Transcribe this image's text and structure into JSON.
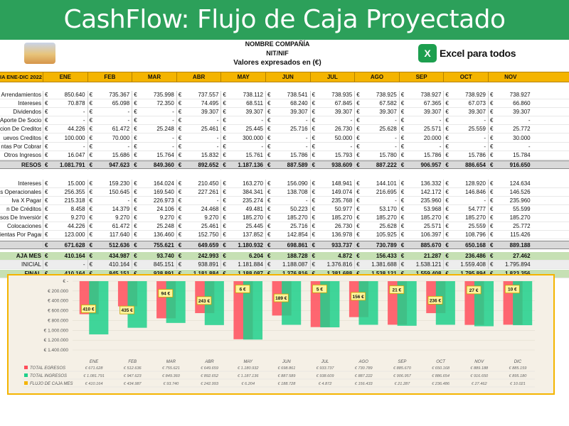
{
  "banner": {
    "title": "CashFlow: Flujo de Caja Proyectado"
  },
  "header": {
    "company": "NOMBRE COMPAÑÍA",
    "nit": "NIT/NIF",
    "values_note": "Valores expresados en (€)",
    "excel_brand": "Excel para todos",
    "excel_icon": "X"
  },
  "table": {
    "title": "IA ENE-DIC 2022",
    "months": [
      "ENE",
      "FEB",
      "MAR",
      "ABR",
      "MAY",
      "JUN",
      "JUL",
      "AGO",
      "SEP",
      "OCT",
      "NOV"
    ],
    "currency": "€",
    "income_rows": [
      {
        "label": "Arrendamientos",
        "values": [
          "850.640",
          "735.367",
          "735.998",
          "737.557",
          "738.112",
          "738.541",
          "738.935",
          "738.925",
          "738.927",
          "738.929",
          "738.927"
        ]
      },
      {
        "label": "Intereses",
        "values": [
          "70.878",
          "65.098",
          "72.350",
          "74.495",
          "68.511",
          "68.240",
          "67.845",
          "67.582",
          "67.365",
          "67.073",
          "66.860"
        ]
      },
      {
        "label": "Dividendos",
        "values": [
          "-",
          "-",
          "-",
          "39.307",
          "39.307",
          "39.307",
          "39.307",
          "39.307",
          "39.307",
          "39.307",
          "39.307"
        ]
      },
      {
        "label": "Aporte De Socios",
        "values": [
          "-",
          "-",
          "-",
          "-",
          "-",
          "-",
          "-",
          "-",
          "-",
          "-",
          "-"
        ]
      },
      {
        "label": "cion De Creditos",
        "values": [
          "44.226",
          "61.472",
          "25.248",
          "25.461",
          "25.445",
          "25.716",
          "26.730",
          "25.628",
          "25.571",
          "25.559",
          "25.772"
        ]
      },
      {
        "label": "uevos Creditos",
        "values": [
          "100.000",
          "70.000",
          "-",
          "-",
          "300.000",
          "-",
          "50.000",
          "-",
          "20.000",
          "-",
          "30.000"
        ]
      },
      {
        "label": "ntas Por Cobrar",
        "values": [
          "-",
          "-",
          "-",
          "-",
          "-",
          "-",
          "-",
          "-",
          "-",
          "-",
          "-"
        ]
      },
      {
        "label": "Otros Ingresos",
        "values": [
          "16.047",
          "15.686",
          "15.764",
          "15.832",
          "15.761",
          "15.786",
          "15.793",
          "15.780",
          "15.786",
          "15.786",
          "15.784"
        ]
      }
    ],
    "income_total": {
      "label": "RESOS",
      "values": [
        "1.081.791",
        "947.623",
        "849.360",
        "892.652",
        "1.187.136",
        "887.589",
        "938.609",
        "887.222",
        "906.957",
        "886.654",
        "916.650"
      ]
    },
    "expense_rows": [
      {
        "label": "Intereses",
        "values": [
          "15.000",
          "159.230",
          "164.024",
          "210.450",
          "163.270",
          "156.090",
          "148.941",
          "144.101",
          "136.332",
          "128.920",
          "124.634"
        ]
      },
      {
        "label": "s Operacionales",
        "values": [
          "256.355",
          "150.645",
          "169.540",
          "227.261",
          "384.341",
          "138.708",
          "149.074",
          "216.695",
          "142.172",
          "146.846",
          "146.526"
        ]
      },
      {
        "label": "Iva X Pagar",
        "values": [
          "215.318",
          "-",
          "226.973",
          "-",
          "235.274",
          "-",
          "235.768",
          "-",
          "235.960",
          "-",
          "235.960"
        ]
      },
      {
        "label": "n De Créditos",
        "values": [
          "8.458",
          "14.379",
          "24.106",
          "24.468",
          "49.481",
          "50.223",
          "50.977",
          "53.170",
          "53.968",
          "54.777",
          "55.599"
        ]
      },
      {
        "label": "sos De Inversión",
        "values": [
          "9.270",
          "9.270",
          "9.270",
          "9.270",
          "185.270",
          "185.270",
          "185.270",
          "185.270",
          "185.270",
          "185.270",
          "185.270"
        ]
      },
      {
        "label": "Colocaciones",
        "values": [
          "44.226",
          "61.472",
          "25.248",
          "25.461",
          "25.445",
          "25.716",
          "26.730",
          "25.628",
          "25.571",
          "25.559",
          "25.772"
        ]
      },
      {
        "label": "ientas Por Pagar",
        "values": [
          "123.000",
          "117.640",
          "136.460",
          "152.750",
          "137.852",
          "142.854",
          "136.978",
          "105.925",
          "106.397",
          "108.796",
          "115.426"
        ]
      }
    ],
    "expense_total": {
      "label": "",
      "values": [
        "671.628",
        "512.636",
        "755.621",
        "649.659",
        "1.180.932",
        "698.861",
        "933.737",
        "730.789",
        "885.670",
        "650.168",
        "889.188"
      ]
    },
    "summary_rows": [
      {
        "label": "AJA MES",
        "values": [
          "410.164",
          "434.987",
          "93.740",
          "242.993",
          "6.204",
          "188.728",
          "4.872",
          "156.433",
          "21.287",
          "236.486",
          "27.462"
        ],
        "style": "green"
      },
      {
        "label": "INICIAL",
        "values": [
          "-",
          "410.164",
          "845.151",
          "938.891",
          "1.181.884",
          "1.188.087",
          "1.376.816",
          "1.381.688",
          "1.538.121",
          "1.559.408",
          "1.795.894"
        ],
        "style": "gray"
      },
      {
        "label": "FINAL",
        "values": [
          "410.164",
          "845.151",
          "938.891",
          "1.181.884",
          "1.188.087",
          "1.376.816",
          "1.381.688",
          "1.538.121",
          "1.559.408",
          "1.795.894",
          "1.823.356"
        ],
        "style": "green"
      }
    ]
  },
  "chart_data": {
    "type": "bar",
    "categories": [
      "ENE",
      "FEB",
      "MAR",
      "ABR",
      "MAY",
      "JUN",
      "JUL",
      "AGO",
      "SEP",
      "OCT",
      "NOV",
      "DIC"
    ],
    "y_ticks": [
      "€ -",
      "€ 200.000",
      "€ 400.000",
      "€ 600.000",
      "€ 800.000",
      "€ 1.000.000",
      "€ 1.200.000",
      "€ 1.400.000"
    ],
    "ylim": [
      0,
      1400000
    ],
    "series": [
      {
        "name": "TOTAL EGRESOS",
        "color": "#ff4d5a",
        "values": [
          671628,
          512636,
          755621,
          649659,
          1180932,
          698861,
          933737,
          730789,
          885670,
          650168,
          889188,
          885159
        ],
        "labels": [
          "€ 671.628",
          "€ 512.636",
          "€ 755.621",
          "€ 649.659",
          "€ 1.180.932",
          "€ 698.861",
          "€ 933.737",
          "€ 730.789",
          "€ 885.670",
          "€ 650.168",
          "€ 889.188",
          "€ 885.159"
        ]
      },
      {
        "name": "TOTAL INGRESOS",
        "color": "#1fd08b",
        "values": [
          1081791,
          947623,
          849360,
          892652,
          1187136,
          887589,
          938609,
          887222,
          906957,
          886654,
          916650,
          895180
        ],
        "labels": [
          "€ 1.081.791",
          "€ 947.623",
          "€ 849.360",
          "€ 892.652",
          "€ 1.187.136",
          "€ 887.589",
          "€ 938.609",
          "€ 887.222",
          "€ 906.957",
          "€ 886.654",
          "€ 916.650",
          "€ 895.180"
        ]
      },
      {
        "name": "FLUJO DE CAJA MES",
        "color": "#f4b400",
        "values": [
          410164,
          434987,
          93740,
          242993,
          6204,
          188728,
          4872,
          156433,
          21287,
          236486,
          27462,
          10021
        ],
        "labels": [
          "€ 410.164",
          "€ 434.987",
          "€ 93.740",
          "€ 242.993",
          "€ 6.204",
          "€ 188.728",
          "€ 4.872",
          "€ 156.433",
          "€ 21.287",
          "€ 236.486",
          "€ 27.462",
          "€ 10.021"
        ]
      }
    ],
    "callouts": [
      "410 €",
      "435 €",
      "94 €",
      "243 €",
      "6 €",
      "189 €",
      "5 €",
      "156 €",
      "21 €",
      "236 €",
      "27 €",
      "10 €"
    ]
  }
}
